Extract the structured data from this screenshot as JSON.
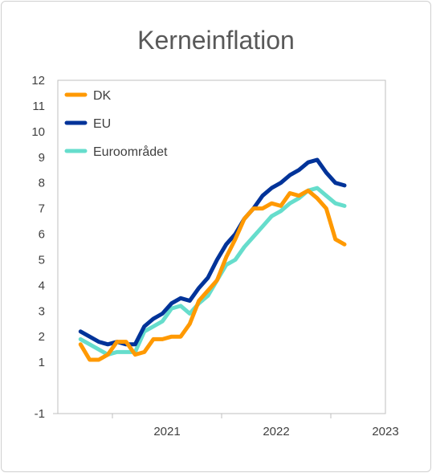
{
  "chart_data": {
    "type": "line",
    "title": "Kerneinflation",
    "xlabel": "",
    "ylabel": "",
    "ylim": [
      -1,
      12
    ],
    "yticks": [
      -1,
      1,
      2,
      3,
      4,
      5,
      6,
      7,
      8,
      9,
      10,
      11,
      12
    ],
    "xtick_labels": [
      "2021",
      "2022",
      "2023"
    ],
    "x": [
      "2020-09",
      "2020-10",
      "2020-11",
      "2020-12",
      "2021-01",
      "2021-02",
      "2021-03",
      "2021-04",
      "2021-05",
      "2021-06",
      "2021-07",
      "2021-08",
      "2021-09",
      "2021-10",
      "2021-11",
      "2021-12",
      "2022-01",
      "2022-02",
      "2022-03",
      "2022-04",
      "2022-05",
      "2022-06",
      "2022-07",
      "2022-08",
      "2022-09",
      "2022-10",
      "2022-11",
      "2022-12",
      "2023-01",
      "2023-02",
      "2023-03",
      "2023-04",
      "2023-05",
      "2023-06",
      "2023-07",
      "2023-08"
    ],
    "legend_position": "top-left",
    "series": [
      {
        "name": "DK",
        "color": "#ff9900",
        "values": [
          1.7,
          1.1,
          1.1,
          1.3,
          1.8,
          1.8,
          1.3,
          1.4,
          1.9,
          1.9,
          2.0,
          2.0,
          2.5,
          3.4,
          3.8,
          4.2,
          5.1,
          5.8,
          6.6,
          7.0,
          7.0,
          7.2,
          7.1,
          7.6,
          7.5,
          7.7,
          7.4,
          7.0,
          5.8,
          5.6,
          null,
          null,
          null,
          null,
          null,
          null
        ]
      },
      {
        "name": "EU",
        "color": "#003399",
        "values": [
          2.2,
          2.0,
          1.8,
          1.7,
          1.8,
          1.7,
          1.7,
          2.4,
          2.7,
          2.9,
          3.3,
          3.5,
          3.4,
          3.9,
          4.3,
          5.0,
          5.6,
          6.0,
          6.6,
          7.0,
          7.5,
          7.8,
          8.0,
          8.3,
          8.5,
          8.8,
          8.9,
          8.4,
          8.0,
          7.9,
          null,
          null,
          null,
          null,
          null,
          null
        ]
      },
      {
        "name": "Euroområdet",
        "color": "#66ddcc",
        "values": [
          1.9,
          1.7,
          1.5,
          1.3,
          1.4,
          1.4,
          1.4,
          2.2,
          2.4,
          2.6,
          3.1,
          3.2,
          2.9,
          3.3,
          3.6,
          4.2,
          4.8,
          5.0,
          5.5,
          5.9,
          6.3,
          6.7,
          6.9,
          7.2,
          7.4,
          7.7,
          7.8,
          7.5,
          7.2,
          7.1,
          null,
          null,
          null,
          null,
          null,
          null
        ]
      }
    ]
  }
}
